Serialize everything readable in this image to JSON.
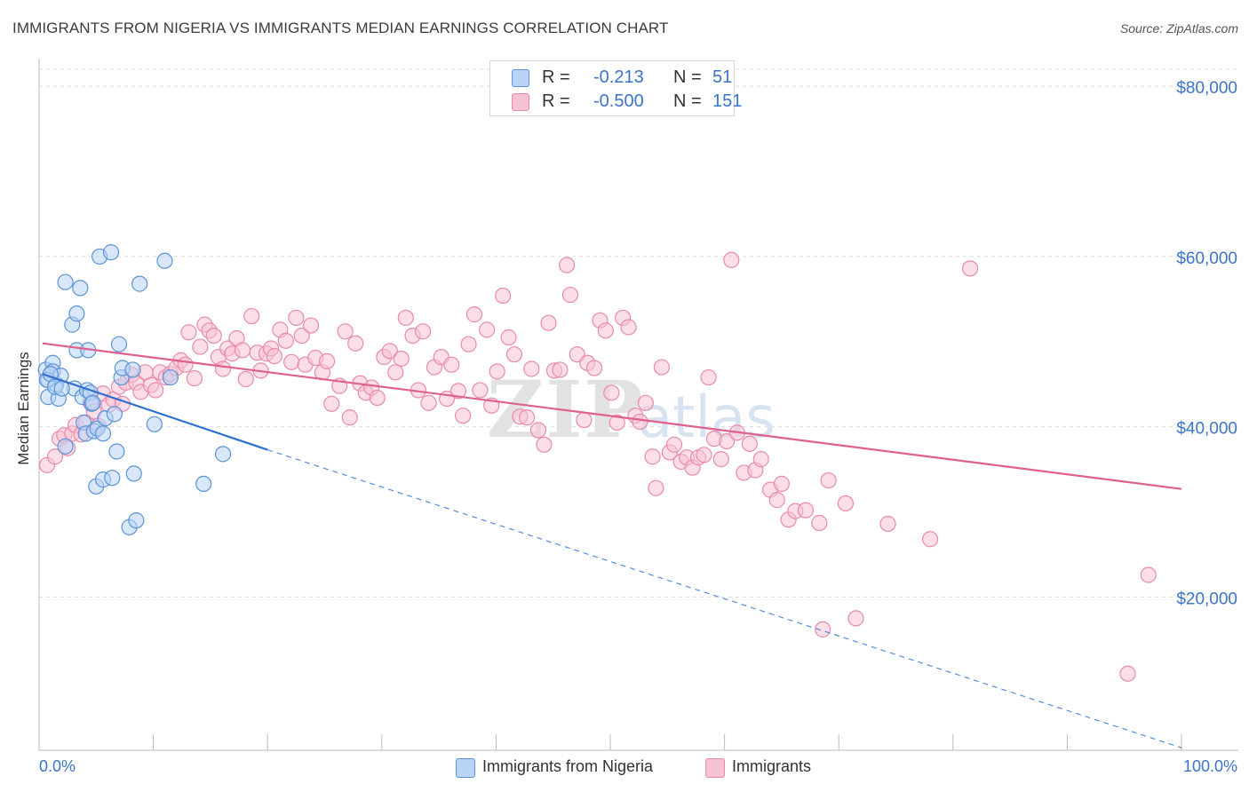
{
  "header": {
    "title": "IMMIGRANTS FROM NIGERIA VS IMMIGRANTS MEDIAN EARNINGS CORRELATION CHART",
    "source": "Source: ZipAtlas.com"
  },
  "legend_top": {
    "rows": [
      {
        "r_label": "R =",
        "r_value": "-0.213",
        "n_label": "N =",
        "n_value": "51"
      },
      {
        "r_label": "R =",
        "r_value": "-0.500",
        "n_label": "N =",
        "n_value": "151"
      }
    ]
  },
  "legend_bottom": {
    "items": [
      {
        "label": "Immigrants from Nigeria"
      },
      {
        "label": "Immigrants"
      }
    ]
  },
  "colors": {
    "nigeria_fill": "#b8d3f5",
    "nigeria_stroke": "#5b93d6",
    "nigeria_line": "#2b6fd1",
    "immigrants_fill": "#f7c3d4",
    "immigrants_stroke": "#e98aab",
    "immigrants_line": "#e0608d",
    "tick_label": "#3a74c8",
    "grid": "#dcdcdc"
  },
  "chart_data": {
    "type": "scatter",
    "title": "IMMIGRANTS FROM NIGERIA VS IMMIGRANTS MEDIAN EARNINGS CORRELATION CHART",
    "xlabel": "",
    "ylabel": "Median Earnings",
    "x_ticks": [
      "0.0%",
      "100.0%"
    ],
    "y_ticks": [
      "$20,000",
      "$40,000",
      "$60,000",
      "$80,000"
    ],
    "y_tick_values": [
      20000,
      40000,
      60000,
      80000
    ],
    "xlim": [
      0,
      100
    ],
    "ylim": [
      2000,
      82000
    ],
    "grid": true,
    "watermark": "ZIPatlas",
    "series": [
      {
        "name": "Immigrants from Nigeria",
        "r": -0.213,
        "n": 51,
        "trend": {
          "x0": 0.3,
          "y0": 46200,
          "x1": 20,
          "y1": 37300,
          "dashed_to_x": 100,
          "dashed_to_y": 2300
        },
        "points": [
          [
            0.6,
            46700
          ],
          [
            0.8,
            45500
          ],
          [
            0.8,
            43500
          ],
          [
            1.2,
            47500
          ],
          [
            1.2,
            46500
          ],
          [
            1.5,
            45000
          ],
          [
            1.7,
            43300
          ],
          [
            1.9,
            46000
          ],
          [
            2.3,
            37700
          ],
          [
            2.3,
            57000
          ],
          [
            2.9,
            52000
          ],
          [
            3.1,
            44500
          ],
          [
            3.3,
            49000
          ],
          [
            3.3,
            53300
          ],
          [
            3.6,
            56300
          ],
          [
            3.8,
            43500
          ],
          [
            3.9,
            40500
          ],
          [
            4.1,
            39200
          ],
          [
            4.2,
            44300
          ],
          [
            4.3,
            49000
          ],
          [
            4.5,
            44000
          ],
          [
            4.6,
            42700
          ],
          [
            4.7,
            42800
          ],
          [
            4.8,
            39500
          ],
          [
            5.0,
            33000
          ],
          [
            5.1,
            39800
          ],
          [
            5.3,
            60000
          ],
          [
            5.6,
            33800
          ],
          [
            5.6,
            39200
          ],
          [
            5.8,
            41000
          ],
          [
            6.3,
            60500
          ],
          [
            6.4,
            34000
          ],
          [
            6.6,
            41500
          ],
          [
            6.8,
            37100
          ],
          [
            7.0,
            49700
          ],
          [
            7.2,
            45800
          ],
          [
            7.3,
            46900
          ],
          [
            7.9,
            28200
          ],
          [
            8.2,
            46700
          ],
          [
            8.3,
            34500
          ],
          [
            8.5,
            29000
          ],
          [
            8.8,
            56800
          ],
          [
            10.1,
            40300
          ],
          [
            11.0,
            59500
          ],
          [
            11.5,
            45800
          ],
          [
            14.4,
            33300
          ],
          [
            16.1,
            36800
          ],
          [
            0.7,
            45500
          ],
          [
            1.0,
            46200
          ],
          [
            1.4,
            44700
          ],
          [
            2.0,
            44500
          ]
        ]
      },
      {
        "name": "Immigrants",
        "r": -0.5,
        "n": 151,
        "trend": {
          "x0": 0.3,
          "y0": 49800,
          "x1": 100,
          "y1": 32700
        },
        "points": [
          [
            0.7,
            35500
          ],
          [
            1.4,
            36500
          ],
          [
            1.8,
            38600
          ],
          [
            2.2,
            39000
          ],
          [
            2.5,
            37500
          ],
          [
            2.9,
            39200
          ],
          [
            3.2,
            40200
          ],
          [
            3.7,
            39100
          ],
          [
            4.1,
            40500
          ],
          [
            4.5,
            42900
          ],
          [
            4.8,
            41800
          ],
          [
            5.2,
            40100
          ],
          [
            5.6,
            43900
          ],
          [
            6.1,
            42600
          ],
          [
            6.5,
            43200
          ],
          [
            7.0,
            44700
          ],
          [
            7.3,
            42700
          ],
          [
            7.6,
            45200
          ],
          [
            8.1,
            46100
          ],
          [
            8.5,
            45200
          ],
          [
            8.9,
            44100
          ],
          [
            9.3,
            46400
          ],
          [
            9.8,
            44900
          ],
          [
            10.2,
            44300
          ],
          [
            10.6,
            46400
          ],
          [
            11.1,
            45800
          ],
          [
            11.5,
            46200
          ],
          [
            12.0,
            46900
          ],
          [
            12.4,
            47800
          ],
          [
            12.8,
            47300
          ],
          [
            13.1,
            51100
          ],
          [
            13.6,
            45700
          ],
          [
            14.1,
            49400
          ],
          [
            14.5,
            52000
          ],
          [
            14.9,
            51300
          ],
          [
            15.3,
            50700
          ],
          [
            15.7,
            48200
          ],
          [
            16.1,
            46800
          ],
          [
            16.5,
            49200
          ],
          [
            16.9,
            48600
          ],
          [
            17.3,
            50400
          ],
          [
            17.8,
            49000
          ],
          [
            18.1,
            45600
          ],
          [
            18.6,
            53000
          ],
          [
            19.1,
            48700
          ],
          [
            19.4,
            46600
          ],
          [
            19.9,
            48600
          ],
          [
            20.3,
            49200
          ],
          [
            20.6,
            48300
          ],
          [
            21.1,
            51400
          ],
          [
            21.6,
            50100
          ],
          [
            22.1,
            47600
          ],
          [
            22.5,
            52800
          ],
          [
            23.0,
            50700
          ],
          [
            23.3,
            47300
          ],
          [
            23.8,
            51900
          ],
          [
            24.2,
            48100
          ],
          [
            24.8,
            46400
          ],
          [
            25.2,
            47700
          ],
          [
            25.6,
            42700
          ],
          [
            26.3,
            44800
          ],
          [
            26.8,
            51200
          ],
          [
            27.2,
            41100
          ],
          [
            27.7,
            49800
          ],
          [
            28.1,
            45100
          ],
          [
            28.6,
            44000
          ],
          [
            29.1,
            44600
          ],
          [
            29.6,
            43400
          ],
          [
            30.2,
            48200
          ],
          [
            30.7,
            48900
          ],
          [
            31.2,
            46400
          ],
          [
            31.7,
            48000
          ],
          [
            32.1,
            52800
          ],
          [
            32.7,
            50700
          ],
          [
            33.2,
            44300
          ],
          [
            33.6,
            51200
          ],
          [
            34.1,
            42800
          ],
          [
            34.6,
            47000
          ],
          [
            35.2,
            48200
          ],
          [
            35.7,
            43300
          ],
          [
            36.1,
            47300
          ],
          [
            36.7,
            44200
          ],
          [
            37.1,
            41300
          ],
          [
            37.6,
            49700
          ],
          [
            38.1,
            53200
          ],
          [
            38.6,
            44300
          ],
          [
            39.2,
            51400
          ],
          [
            39.6,
            42500
          ],
          [
            40.1,
            46500
          ],
          [
            40.6,
            55400
          ],
          [
            41.1,
            50500
          ],
          [
            41.6,
            48500
          ],
          [
            42.1,
            41200
          ],
          [
            42.7,
            41100
          ],
          [
            43.1,
            46800
          ],
          [
            43.7,
            39600
          ],
          [
            44.2,
            37900
          ],
          [
            44.6,
            52200
          ],
          [
            45.1,
            46600
          ],
          [
            45.6,
            46700
          ],
          [
            46.2,
            59000
          ],
          [
            46.5,
            55500
          ],
          [
            47.1,
            48500
          ],
          [
            47.7,
            40800
          ],
          [
            48.0,
            47500
          ],
          [
            48.6,
            46900
          ],
          [
            49.1,
            52500
          ],
          [
            49.6,
            51300
          ],
          [
            50.1,
            44000
          ],
          [
            50.6,
            40500
          ],
          [
            51.1,
            52800
          ],
          [
            51.6,
            51700
          ],
          [
            52.2,
            41300
          ],
          [
            52.6,
            40600
          ],
          [
            53.1,
            42800
          ],
          [
            53.7,
            36500
          ],
          [
            54.0,
            32800
          ],
          [
            54.5,
            47000
          ],
          [
            55.2,
            37000
          ],
          [
            55.6,
            37900
          ],
          [
            56.2,
            35900
          ],
          [
            56.7,
            36400
          ],
          [
            57.2,
            35200
          ],
          [
            57.7,
            36400
          ],
          [
            58.2,
            36700
          ],
          [
            58.6,
            45800
          ],
          [
            59.1,
            38600
          ],
          [
            59.7,
            36200
          ],
          [
            60.2,
            38300
          ],
          [
            60.6,
            59600
          ],
          [
            61.1,
            39300
          ],
          [
            61.7,
            34600
          ],
          [
            62.2,
            38000
          ],
          [
            62.7,
            34900
          ],
          [
            63.2,
            36200
          ],
          [
            64.0,
            32600
          ],
          [
            64.6,
            31400
          ],
          [
            65.0,
            33300
          ],
          [
            65.6,
            29100
          ],
          [
            66.2,
            30100
          ],
          [
            67.1,
            30200
          ],
          [
            68.3,
            28700
          ],
          [
            68.6,
            16200
          ],
          [
            69.1,
            33700
          ],
          [
            70.6,
            31000
          ],
          [
            71.5,
            17500
          ],
          [
            74.3,
            28600
          ],
          [
            78.0,
            26800
          ],
          [
            81.5,
            58600
          ],
          [
            95.3,
            11000
          ],
          [
            97.1,
            22600
          ]
        ]
      }
    ]
  }
}
